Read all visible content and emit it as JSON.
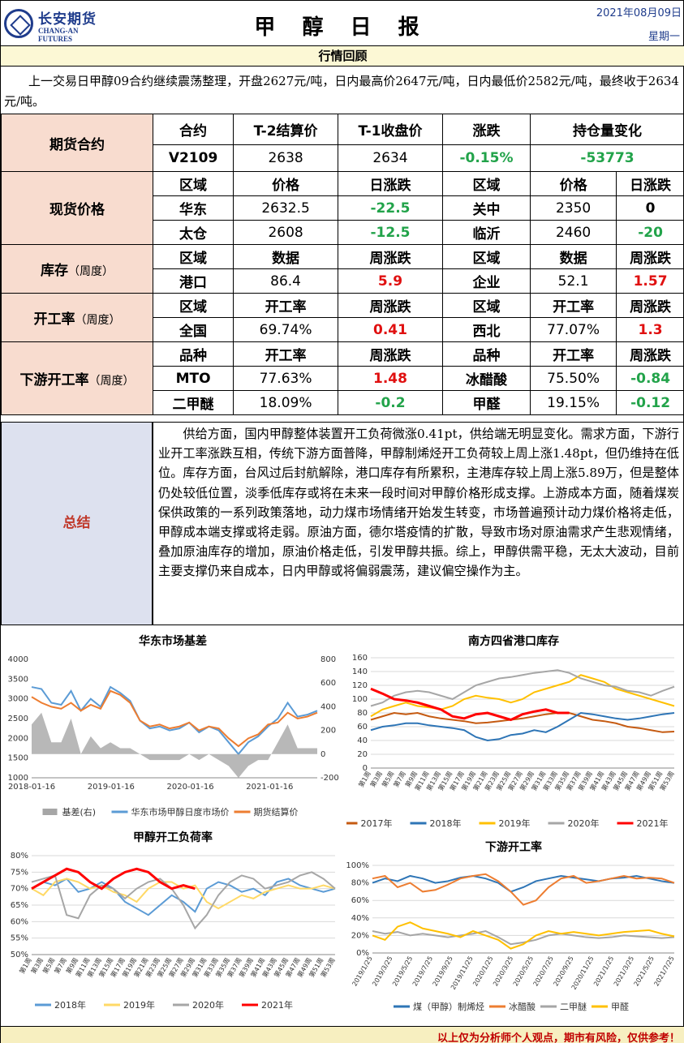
{
  "header": {
    "logo_cn": "长安期货",
    "logo_en": "CHANG-AN FUTURES",
    "title": "甲 醇 日 报",
    "date": "2021年08月09日",
    "weekday": "星期一"
  },
  "section_title": "行情回顾",
  "review": "上一交易日甲醇09合约继续震荡整理，开盘2627元/吨，日内最高价2647元/吨，日内最低价2582元/吨，最终收于2634元/吨。",
  "futures": {
    "label": "期货合约",
    "headers": [
      "合约",
      "T-2结算价",
      "T-1收盘价",
      "涨跌",
      "持仓量变化"
    ],
    "row": [
      "V2109",
      "2638",
      "2634",
      "-0.15%",
      "-53773"
    ]
  },
  "spot": {
    "label": "现货价格",
    "headers": [
      "区域",
      "价格",
      "日涨跌",
      "区域",
      "价格",
      "日涨跌"
    ],
    "rows": [
      [
        "华东",
        "2632.5",
        "-22.5",
        "关中",
        "2350",
        "0"
      ],
      [
        "太仓",
        "2608",
        "-12.5",
        "临沂",
        "2460",
        "-20"
      ]
    ]
  },
  "inventory": {
    "label": "库存",
    "label_sub": "（周度）",
    "headers": [
      "区域",
      "数据",
      "周涨跌",
      "区域",
      "数据",
      "周涨跌"
    ],
    "row": [
      "港口",
      "86.4",
      "5.9",
      "企业",
      "52.1",
      "1.57"
    ]
  },
  "operating": {
    "label": "开工率",
    "label_sub": "（周度）",
    "headers": [
      "区域",
      "开工率",
      "周涨跌",
      "区域",
      "开工率",
      "周涨跌"
    ],
    "row": [
      "全国",
      "69.74%",
      "0.41",
      "西北",
      "77.07%",
      "1.3"
    ]
  },
  "downstream": {
    "label": "下游开工率",
    "label_sub": "（周度）",
    "headers": [
      "品种",
      "开工率",
      "周涨跌",
      "品种",
      "开工率",
      "周涨跌"
    ],
    "rows": [
      [
        "MTO",
        "77.63%",
        "1.48",
        "冰醋酸",
        "75.50%",
        "-0.84"
      ],
      [
        "二甲醚",
        "18.09%",
        "-0.2",
        "甲醛",
        "19.15%",
        "-0.12"
      ]
    ]
  },
  "summary": {
    "label": "总结",
    "text": "供给方面，国内甲醇整体装置开工负荷微涨0.41pt，供给端无明显变化。需求方面，下游行业开工率涨跌互相，传统下游方面普降，甲醇制烯烃开工负荷较上周上涨1.48pt，但仍维持在低位。库存方面，台风过后封航解除，港口库存有所累积，主港库存较上周上涨5.89万，但是整体仍处较低位置，淡季低库存或将在未来一段时间对甲醇价格形成支撑。上游成本方面，随着煤炭保供政策的一系列政策落地，动力煤市场情绪开始发生转变，市场普遍预计动力煤价格将走低，甲醇成本端支撑或将走弱。原油方面，德尔塔疫情的扩散，导致市场对原油需求产生悲观情绪，叠加原油库存的增加，原油价格走低，引发甲醇共振。综上，甲醇供需平稳，无太大波动，目前主要支撑仍来自成本，日内甲醇或将偏弱震荡，建议偏空操作为主。"
  },
  "footer": "以上仅为分析师个人观点，期市有风险，仅供参考！",
  "chart_data": [
    {
      "type": "line",
      "title": "华东市场基差",
      "x_ticks": [
        "2018-01-16",
        "2019-01-16",
        "2020-01-16",
        "2021-01-16"
      ],
      "y_left": [
        1000,
        1500,
        2000,
        2500,
        3000,
        3500,
        4000
      ],
      "y_right": [
        -200,
        0,
        200,
        400,
        600,
        800
      ],
      "legend": [
        "基差(右)",
        "华东市场甲醇日度市场价",
        "期货结算价"
      ],
      "colors": [
        "#a6a6a6",
        "#5b9bd5",
        "#ed7d31"
      ],
      "series": [
        {
          "name": "华东市场甲醇日度市场价",
          "values": [
            3300,
            3250,
            2900,
            2850,
            3200,
            2700,
            3000,
            2800,
            3300,
            3150,
            2950,
            2450,
            2250,
            2300,
            2200,
            2250,
            2400,
            2150,
            2300,
            2200,
            1900,
            1600,
            1900,
            2050,
            2300,
            2500,
            2900,
            2550,
            2600,
            2700
          ]
        },
        {
          "name": "期货结算价",
          "values": [
            3050,
            2900,
            2800,
            2750,
            2900,
            2700,
            2850,
            2750,
            3200,
            3100,
            2900,
            2450,
            2300,
            2350,
            2250,
            2300,
            2400,
            2200,
            2300,
            2250,
            2000,
            1800,
            2000,
            2100,
            2350,
            2400,
            2650,
            2500,
            2550,
            2650
          ]
        },
        {
          "name": "基差(右)",
          "values": [
            250,
            350,
            100,
            100,
            300,
            0,
            150,
            50,
            100,
            50,
            50,
            0,
            -50,
            -50,
            -50,
            -50,
            0,
            -50,
            0,
            -50,
            -100,
            -200,
            -100,
            -50,
            -50,
            100,
            250,
            50,
            50,
            50
          ]
        }
      ]
    },
    {
      "type": "line",
      "title": "南方四省港口库存",
      "y_ticks": [
        0,
        20,
        40,
        60,
        80,
        100,
        120,
        140,
        160
      ],
      "x_ticks": [
        "第1周",
        "第3周",
        "第5周",
        "第7周",
        "第9周",
        "第11周",
        "第13周",
        "第15周",
        "第17周",
        "第19周",
        "第21周",
        "第23周",
        "第25周",
        "第27周",
        "第29周",
        "第31周",
        "第33周",
        "第35周",
        "第37周",
        "第39周",
        "第41周",
        "第43周",
        "第45周",
        "第47周",
        "第49周",
        "第51周",
        "第53周"
      ],
      "legend": [
        "2017年",
        "2018年",
        "2019年",
        "2020年",
        "2021年"
      ],
      "colors": [
        "#c55a11",
        "#2e75b6",
        "#ffc000",
        "#a6a6a6",
        "#ff0000"
      ],
      "series": [
        {
          "name": "2017年",
          "values": [
            70,
            75,
            80,
            78,
            80,
            75,
            72,
            70,
            68,
            65,
            66,
            68,
            70,
            72,
            75,
            78,
            80,
            80,
            75,
            70,
            68,
            65,
            60,
            58,
            55,
            52,
            53
          ]
        },
        {
          "name": "2018年",
          "values": [
            55,
            60,
            62,
            65,
            65,
            62,
            60,
            58,
            55,
            45,
            40,
            42,
            48,
            50,
            55,
            52,
            60,
            70,
            80,
            78,
            75,
            72,
            70,
            72,
            75,
            78,
            80
          ]
        },
        {
          "name": "2019年",
          "values": [
            75,
            85,
            90,
            95,
            90,
            88,
            85,
            90,
            100,
            105,
            102,
            100,
            95,
            100,
            110,
            115,
            120,
            125,
            135,
            130,
            125,
            115,
            110,
            105,
            100,
            95,
            90
          ]
        },
        {
          "name": "2020年",
          "values": [
            90,
            95,
            105,
            110,
            112,
            110,
            105,
            100,
            110,
            120,
            125,
            130,
            132,
            135,
            138,
            140,
            142,
            138,
            130,
            125,
            120,
            118,
            112,
            110,
            105,
            112,
            118
          ]
        },
        {
          "name": "2021年",
          "values": [
            115,
            108,
            100,
            98,
            95,
            90,
            85,
            75,
            72,
            78,
            80,
            75,
            70,
            78,
            82,
            85,
            80,
            80
          ]
        }
      ]
    },
    {
      "type": "line",
      "title": "甲醇开工负荷率",
      "y_ticks": [
        "50%",
        "55%",
        "60%",
        "65%",
        "70%",
        "75%",
        "80%"
      ],
      "x_ticks": [
        "第1周",
        "第3周",
        "第5周",
        "第7周",
        "第9周",
        "第11周",
        "第13周",
        "第15周",
        "第17周",
        "第19周",
        "第21周",
        "第23周",
        "第25周",
        "第27周",
        "第29周",
        "第31周",
        "第33周",
        "第35周",
        "第37周",
        "第39周",
        "第41周",
        "第43周",
        "第45周",
        "第47周",
        "第49周",
        "第51周",
        "第53周"
      ],
      "legend": [
        "2018年",
        "2019年",
        "2020年",
        "2021年"
      ],
      "colors": [
        "#5b9bd5",
        "#ffd966",
        "#a6a6a6",
        "#ff0000"
      ],
      "series": [
        {
          "name": "2018年",
          "values": [
            70,
            72,
            71,
            73,
            69,
            70,
            72,
            70,
            66,
            64,
            62,
            65,
            68,
            66,
            63,
            70,
            72,
            71,
            69,
            70,
            68,
            72,
            73,
            71,
            70,
            69,
            70
          ]
        },
        {
          "name": "2019年",
          "values": [
            70,
            68,
            72,
            73,
            72,
            70,
            71,
            69,
            68,
            66,
            70,
            72,
            72,
            70,
            71,
            66,
            64,
            66,
            68,
            67,
            69,
            70,
            71,
            70,
            70,
            71,
            70
          ]
        },
        {
          "name": "2020年",
          "values": [
            72,
            73,
            74,
            62,
            61,
            68,
            71,
            70,
            67,
            70,
            72,
            73,
            70,
            65,
            58,
            62,
            68,
            72,
            74,
            73,
            70,
            71,
            72,
            74,
            75,
            73,
            70
          ]
        },
        {
          "name": "2021年",
          "values": [
            70,
            72,
            74,
            76,
            75,
            72,
            70,
            73,
            75,
            76,
            75,
            72,
            70,
            71,
            70
          ]
        }
      ]
    },
    {
      "type": "line",
      "title": "下游开工率",
      "y_ticks": [
        "0%",
        "20%",
        "40%",
        "60%",
        "80%",
        "100%"
      ],
      "x_ticks": [
        "2019/1/25",
        "2019/3/25",
        "2019/5/25",
        "2019/7/25",
        "2019/9/25",
        "2019/11/25",
        "2020/1/25",
        "2020/3/25",
        "2020/5/25",
        "2020/7/25",
        "2020/9/25",
        "2020/11/25",
        "2021/1/25",
        "2021/3/25",
        "2021/5/25",
        "2021/7/25"
      ],
      "legend": [
        "煤（甲醇）制烯烃",
        "冰醋酸",
        "二甲醚",
        "甲醛"
      ],
      "colors": [
        "#2e75b6",
        "#ed7d31",
        "#a6a6a6",
        "#ffc000"
      ],
      "series": [
        {
          "name": "煤（甲醇）制烯烃",
          "values": [
            80,
            85,
            82,
            88,
            85,
            80,
            82,
            86,
            88,
            85,
            80,
            70,
            75,
            82,
            85,
            88,
            86,
            84,
            82,
            85,
            86,
            88,
            85,
            82,
            80
          ]
        },
        {
          "name": "冰醋酸",
          "values": [
            85,
            88,
            75,
            80,
            70,
            72,
            78,
            85,
            88,
            90,
            82,
            70,
            55,
            60,
            75,
            85,
            88,
            80,
            82,
            85,
            88,
            85,
            86,
            85,
            80
          ]
        },
        {
          "name": "二甲醚",
          "values": [
            25,
            22,
            24,
            20,
            22,
            20,
            18,
            20,
            22,
            25,
            18,
            10,
            12,
            15,
            20,
            22,
            20,
            18,
            17,
            18,
            20,
            19,
            18,
            17,
            18
          ]
        },
        {
          "name": "甲醛",
          "values": [
            20,
            15,
            30,
            35,
            28,
            25,
            22,
            18,
            25,
            20,
            15,
            5,
            10,
            20,
            25,
            22,
            24,
            22,
            20,
            22,
            24,
            25,
            26,
            22,
            19
          ]
        }
      ]
    }
  ]
}
